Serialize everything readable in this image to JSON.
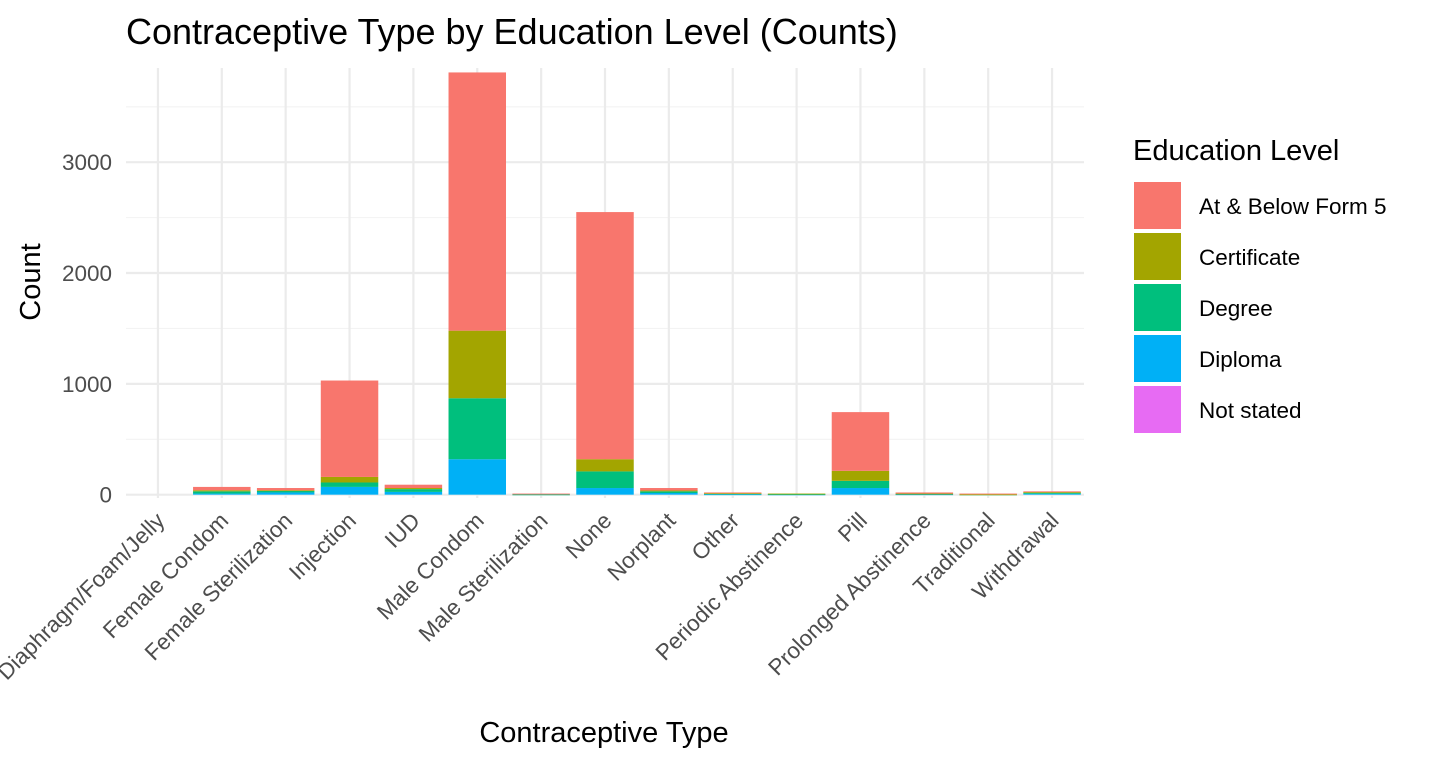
{
  "chart_data": {
    "type": "bar",
    "stacked": true,
    "title": "Contraceptive Type by Education Level (Counts)",
    "xlabel": "Contraceptive Type",
    "ylabel": "Count",
    "ylim": [
      -30,
      3850
    ],
    "yticks": [
      0,
      1000,
      2000,
      3000
    ],
    "grid": true,
    "legend": {
      "title": "Education Level",
      "position": "right"
    },
    "categories": [
      "Diaphragm/Foam/Jelly",
      "Female Condom",
      "Female Sterilization",
      "Injection",
      "IUD",
      "Male Condom",
      "Male Sterilization",
      "None",
      "Norplant",
      "Other",
      "Periodic Abstinence",
      "Pill",
      "Prolonged Abstinence",
      "Traditional",
      "Withdrawal"
    ],
    "series": [
      {
        "name": "Diploma",
        "color": "#00B0F6",
        "values": [
          0,
          10,
          20,
          70,
          25,
          320,
          0,
          60,
          15,
          3,
          2,
          60,
          3,
          0,
          8
        ]
      },
      {
        "name": "Degree",
        "color": "#00BF7D",
        "values": [
          0,
          20,
          15,
          40,
          25,
          550,
          2,
          150,
          15,
          7,
          3,
          65,
          5,
          2,
          10
        ]
      },
      {
        "name": "Certificate",
        "color": "#A3A500",
        "values": [
          0,
          10,
          5,
          50,
          10,
          610,
          0,
          110,
          8,
          3,
          5,
          90,
          2,
          1,
          5
        ]
      },
      {
        "name": "At & Below Form 5",
        "color": "#F8766D",
        "values": [
          0,
          30,
          20,
          870,
          30,
          2330,
          8,
          2230,
          22,
          7,
          0,
          530,
          10,
          7,
          7
        ]
      },
      {
        "name": "Not stated",
        "color": "#E76BF3",
        "values": [
          0,
          0,
          0,
          0,
          0,
          0,
          0,
          0,
          0,
          0,
          0,
          0,
          0,
          0,
          0
        ]
      }
    ],
    "legend_order": [
      "At & Below Form 5",
      "Certificate",
      "Degree",
      "Diploma",
      "Not stated"
    ]
  }
}
